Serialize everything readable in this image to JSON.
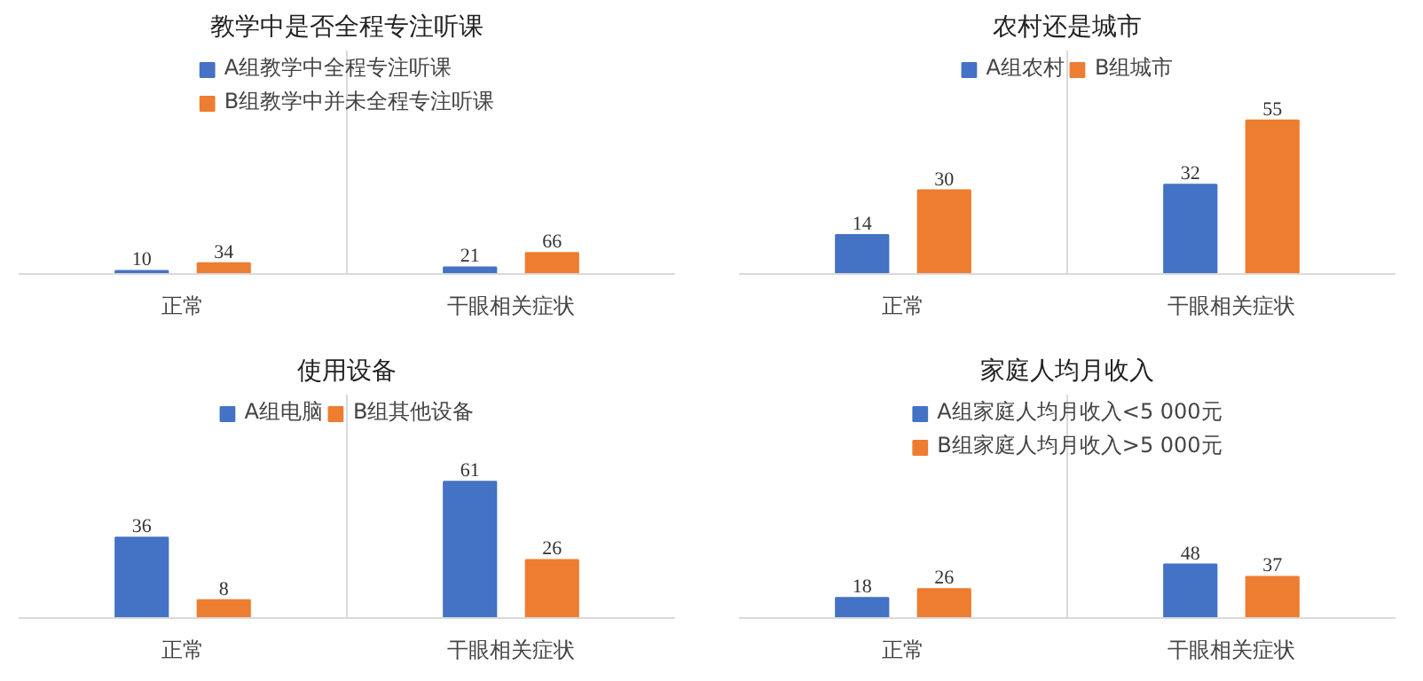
{
  "chart_data": [
    {
      "type": "bar",
      "title": "教学中是否全程专注听课",
      "categories": [
        "正常",
        "干眼相关症状"
      ],
      "series": [
        {
          "name": "A组教学中全程专注听课",
          "color": "#4472c4",
          "values": [
            10,
            21
          ]
        },
        {
          "name": "B组教学中并未全程专注听课",
          "color": "#ed7d31",
          "values": [
            34,
            66
          ]
        }
      ],
      "ylim": [
        0,
        700
      ],
      "data_labels": true,
      "legend": "top",
      "grid": "x"
    },
    {
      "type": "bar",
      "title": "农村还是城市",
      "categories": [
        "正常",
        "干眼相关症状"
      ],
      "series": [
        {
          "name": "A组农村",
          "color": "#4472c4",
          "values": [
            14,
            32
          ]
        },
        {
          "name": "B组城市",
          "color": "#ed7d31",
          "values": [
            30,
            55
          ]
        }
      ],
      "ylim": [
        0,
        80
      ],
      "data_labels": true,
      "legend": "top",
      "grid": "x"
    },
    {
      "type": "bar",
      "title": "使用设备",
      "categories": [
        "正常",
        "干眼相关症状"
      ],
      "series": [
        {
          "name": "A组电脑",
          "color": "#4472c4",
          "values": [
            36,
            61
          ]
        },
        {
          "name": "B组其他设备",
          "color": "#ed7d31",
          "values": [
            8,
            26
          ]
        }
      ],
      "ylim": [
        0,
        100
      ],
      "data_labels": true,
      "legend": "top",
      "grid": "x"
    },
    {
      "type": "bar",
      "title": "家庭人均月收入",
      "categories": [
        "正常",
        "干眼相关症状"
      ],
      "series": [
        {
          "name": "A组家庭人均月收入<5 000元",
          "color": "#4472c4",
          "values": [
            18,
            48
          ]
        },
        {
          "name": "B组家庭人均月收入>5 000元",
          "color": "#ed7d31",
          "values": [
            26,
            37
          ]
        }
      ],
      "ylim": [
        0,
        200
      ],
      "data_labels": true,
      "legend": "top",
      "grid": "x"
    }
  ]
}
